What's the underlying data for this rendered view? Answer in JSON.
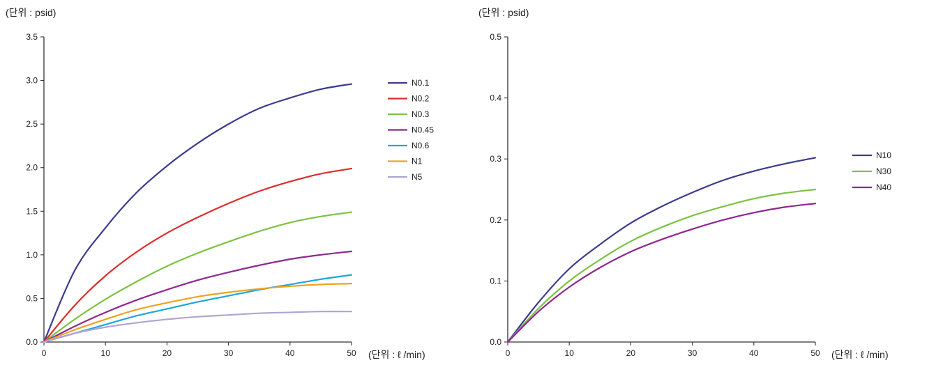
{
  "chart_data": [
    {
      "type": "line",
      "ylabel": "(단위 : psid)",
      "xlabel": "(단위 :  ℓ /min)",
      "xlim": [
        0,
        50
      ],
      "ylim": [
        0,
        3.5
      ],
      "x_ticks": [
        "0",
        "10",
        "20",
        "30",
        "40",
        "50"
      ],
      "y_ticks": [
        "0.0",
        "0.5",
        "1.0",
        "1.5",
        "2.0",
        "2.5",
        "3.0",
        "3.5"
      ],
      "grid": false,
      "legend_position": "right",
      "x": [
        0,
        5,
        10,
        15,
        20,
        25,
        30,
        35,
        40,
        45,
        50
      ],
      "series": [
        {
          "name": "N0.1",
          "color": "#3b3b8f",
          "values": [
            0,
            0.82,
            1.31,
            1.71,
            2.02,
            2.28,
            2.5,
            2.68,
            2.8,
            2.9,
            2.96
          ]
        },
        {
          "name": "N0.2",
          "color": "#e02b2b",
          "values": [
            0,
            0.42,
            0.76,
            1.03,
            1.25,
            1.43,
            1.59,
            1.73,
            1.84,
            1.93,
            1.99
          ]
        },
        {
          "name": "N0.3",
          "color": "#7dc242",
          "values": [
            0,
            0.26,
            0.49,
            0.69,
            0.87,
            1.02,
            1.15,
            1.27,
            1.37,
            1.44,
            1.49
          ]
        },
        {
          "name": "N0.45",
          "color": "#8e278f",
          "values": [
            0,
            0.18,
            0.34,
            0.48,
            0.6,
            0.71,
            0.8,
            0.88,
            0.95,
            1.0,
            1.04
          ]
        },
        {
          "name": "N0.6",
          "color": "#1ea5dc",
          "values": [
            0,
            0.1,
            0.2,
            0.3,
            0.38,
            0.46,
            0.53,
            0.6,
            0.66,
            0.72,
            0.77
          ]
        },
        {
          "name": "N1",
          "color": "#f0a21e",
          "values": [
            0,
            0.14,
            0.26,
            0.37,
            0.45,
            0.52,
            0.57,
            0.61,
            0.64,
            0.66,
            0.67
          ]
        },
        {
          "name": "N5",
          "color": "#b0a4d2",
          "values": [
            0,
            0.1,
            0.17,
            0.22,
            0.26,
            0.29,
            0.31,
            0.33,
            0.34,
            0.35,
            0.35
          ]
        }
      ]
    },
    {
      "type": "line",
      "ylabel": "(단위 : psid)",
      "xlabel": "(단위 :  ℓ /min)",
      "xlim": [
        0,
        50
      ],
      "ylim": [
        0,
        0.5
      ],
      "x_ticks": [
        "0",
        "10",
        "20",
        "30",
        "40",
        "50"
      ],
      "y_ticks": [
        "0.0",
        "0.1",
        "0.2",
        "0.3",
        "0.4",
        "0.5"
      ],
      "grid": false,
      "legend_position": "right",
      "x": [
        0,
        5,
        10,
        15,
        20,
        25,
        30,
        35,
        40,
        45,
        50
      ],
      "series": [
        {
          "name": "N10",
          "color": "#3b3b8f",
          "values": [
            0,
            0.065,
            0.12,
            0.16,
            0.195,
            0.222,
            0.245,
            0.265,
            0.28,
            0.292,
            0.302
          ]
        },
        {
          "name": "N30",
          "color": "#7dc242",
          "values": [
            0,
            0.055,
            0.1,
            0.135,
            0.165,
            0.188,
            0.207,
            0.222,
            0.235,
            0.244,
            0.25
          ]
        },
        {
          "name": "N40",
          "color": "#8e278f",
          "values": [
            0,
            0.05,
            0.09,
            0.122,
            0.148,
            0.168,
            0.185,
            0.2,
            0.212,
            0.221,
            0.227
          ]
        }
      ]
    }
  ]
}
